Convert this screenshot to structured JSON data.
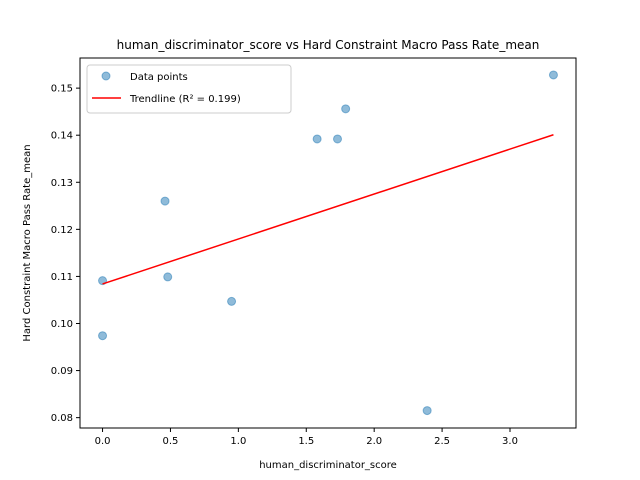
{
  "chart_data": {
    "type": "scatter",
    "title": "human_discriminator_score vs Hard Constraint Macro Pass Rate_mean",
    "xlabel": "human_discriminator_score",
    "ylabel": "Hard Constraint Macro Pass Rate_mean",
    "xlim": [
      -0.166,
      3.486
    ],
    "ylim": [
      0.0778,
      0.1564
    ],
    "xticks": [
      0.0,
      0.5,
      1.0,
      1.5,
      2.0,
      2.5,
      3.0
    ],
    "xtick_labels": [
      "0.0",
      "0.5",
      "1.0",
      "1.5",
      "2.0",
      "2.5",
      "3.0"
    ],
    "yticks": [
      0.08,
      0.09,
      0.1,
      0.11,
      0.12,
      0.13,
      0.14,
      0.15
    ],
    "ytick_labels": [
      "0.08",
      "0.09",
      "0.10",
      "0.11",
      "0.12",
      "0.13",
      "0.14",
      "0.15"
    ],
    "grid": false,
    "legend_position": "top-left",
    "series": [
      {
        "name": "Data points",
        "kind": "scatter",
        "color": "#1f77b4",
        "points": [
          {
            "x": 0.0,
            "y": 0.1091
          },
          {
            "x": 0.0,
            "y": 0.0974
          },
          {
            "x": 0.46,
            "y": 0.126
          },
          {
            "x": 0.48,
            "y": 0.1099
          },
          {
            "x": 0.95,
            "y": 0.1047
          },
          {
            "x": 1.58,
            "y": 0.1392
          },
          {
            "x": 1.73,
            "y": 0.1392
          },
          {
            "x": 1.79,
            "y": 0.1456
          },
          {
            "x": 2.39,
            "y": 0.0815
          },
          {
            "x": 3.32,
            "y": 0.1528
          }
        ]
      },
      {
        "name": "Trendline (R² = 0.199)",
        "kind": "line",
        "color": "#ff0000",
        "points": [
          {
            "x": 0.0,
            "y": 0.1084
          },
          {
            "x": 3.32,
            "y": 0.1401
          }
        ]
      }
    ]
  }
}
